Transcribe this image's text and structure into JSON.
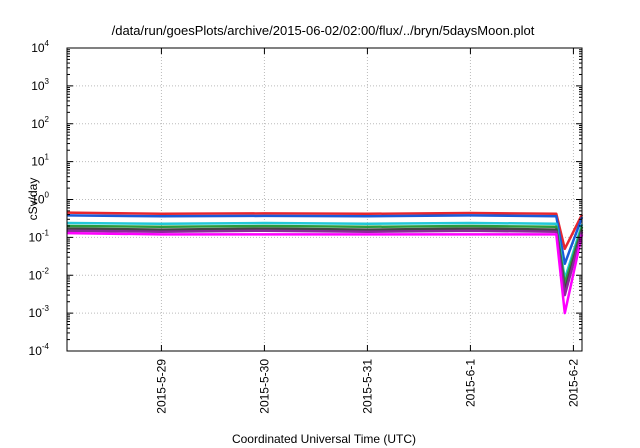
{
  "chart_data": {
    "type": "line",
    "title": "/data/run/goesPlots/archive/2015-06-02/02:00/flux/../bryn/5daysMoon.plot",
    "xlabel": "Coordinated Universal Time (UTC)",
    "ylabel": "cSv/day",
    "y_scale": "log",
    "ylim": [
      0.0001,
      10000
    ],
    "y_ticks": [
      {
        "base": "10",
        "exp": "-4",
        "value": 0.0001
      },
      {
        "base": "10",
        "exp": "-3",
        "value": 0.001
      },
      {
        "base": "10",
        "exp": "-2",
        "value": 0.01
      },
      {
        "base": "10",
        "exp": "-1",
        "value": 0.1
      },
      {
        "base": "10",
        "exp": "0",
        "value": 1
      },
      {
        "base": "10",
        "exp": "1",
        "value": 10
      },
      {
        "base": "10",
        "exp": "2",
        "value": 100
      },
      {
        "base": "10",
        "exp": "3",
        "value": 1000
      },
      {
        "base": "10",
        "exp": "4",
        "value": 10000
      }
    ],
    "xlim": [
      "2015-05-28T02:00",
      "2015-06-02T02:00"
    ],
    "x_ticks": [
      "2015-5-29",
      "2015-5-30",
      "2015-5-31",
      "2015-6-1",
      "2015-6-2"
    ],
    "grid": true,
    "legend": "none",
    "series": [
      {
        "color": "#e8262e",
        "x": [
          "2015-05-28T02:00",
          "2015-05-29T00:00",
          "2015-05-30T00:00",
          "2015-05-31T00:00",
          "2015-06-01T00:00",
          "2015-06-01T20:00",
          "2015-06-01T22:00",
          "2015-06-02T02:00"
        ],
        "y": [
          0.45,
          0.42,
          0.43,
          0.42,
          0.44,
          0.42,
          0.05,
          0.4
        ]
      },
      {
        "color": "#1a5ad8",
        "x": [
          "2015-05-28T02:00",
          "2015-05-29T00:00",
          "2015-05-30T00:00",
          "2015-05-31T00:00",
          "2015-06-01T00:00",
          "2015-06-01T20:00",
          "2015-06-01T22:00",
          "2015-06-02T02:00"
        ],
        "y": [
          0.38,
          0.36,
          0.37,
          0.36,
          0.38,
          0.36,
          0.02,
          0.34
        ]
      },
      {
        "color": "#22c8d8",
        "x": [
          "2015-05-28T02:00",
          "2015-05-29T00:00",
          "2015-05-30T00:00",
          "2015-05-31T00:00",
          "2015-06-01T00:00",
          "2015-06-01T20:00",
          "2015-06-01T22:00",
          "2015-06-02T02:00"
        ],
        "y": [
          0.24,
          0.23,
          0.24,
          0.23,
          0.24,
          0.23,
          0.008,
          0.22
        ]
      },
      {
        "color": "#2a9a3c",
        "x": [
          "2015-05-28T02:00",
          "2015-05-29T00:00",
          "2015-05-30T00:00",
          "2015-05-31T00:00",
          "2015-06-01T00:00",
          "2015-06-01T20:00",
          "2015-06-01T22:00",
          "2015-06-02T02:00"
        ],
        "y": [
          0.2,
          0.19,
          0.2,
          0.19,
          0.2,
          0.19,
          0.006,
          0.19
        ]
      },
      {
        "color": "#444444",
        "x": [
          "2015-05-28T02:00",
          "2015-05-29T00:00",
          "2015-05-30T00:00",
          "2015-05-31T00:00",
          "2015-06-01T00:00",
          "2015-06-01T20:00",
          "2015-06-01T22:00",
          "2015-06-02T02:00"
        ],
        "y": [
          0.17,
          0.16,
          0.17,
          0.16,
          0.17,
          0.16,
          0.004,
          0.16
        ]
      },
      {
        "color": "#8a2a9a",
        "x": [
          "2015-05-28T02:00",
          "2015-05-29T00:00",
          "2015-05-30T00:00",
          "2015-05-31T00:00",
          "2015-06-01T00:00",
          "2015-06-01T20:00",
          "2015-06-01T22:00",
          "2015-06-02T02:00"
        ],
        "y": [
          0.15,
          0.14,
          0.15,
          0.14,
          0.15,
          0.14,
          0.003,
          0.14
        ]
      },
      {
        "color": "#ff00ff",
        "x": [
          "2015-05-28T02:00",
          "2015-05-29T00:00",
          "2015-05-30T00:00",
          "2015-05-31T00:00",
          "2015-06-01T00:00",
          "2015-06-01T20:00",
          "2015-06-01T22:00",
          "2015-06-02T02:00"
        ],
        "y": [
          0.13,
          0.12,
          0.12,
          0.12,
          0.12,
          0.12,
          0.001,
          0.12
        ]
      }
    ]
  }
}
